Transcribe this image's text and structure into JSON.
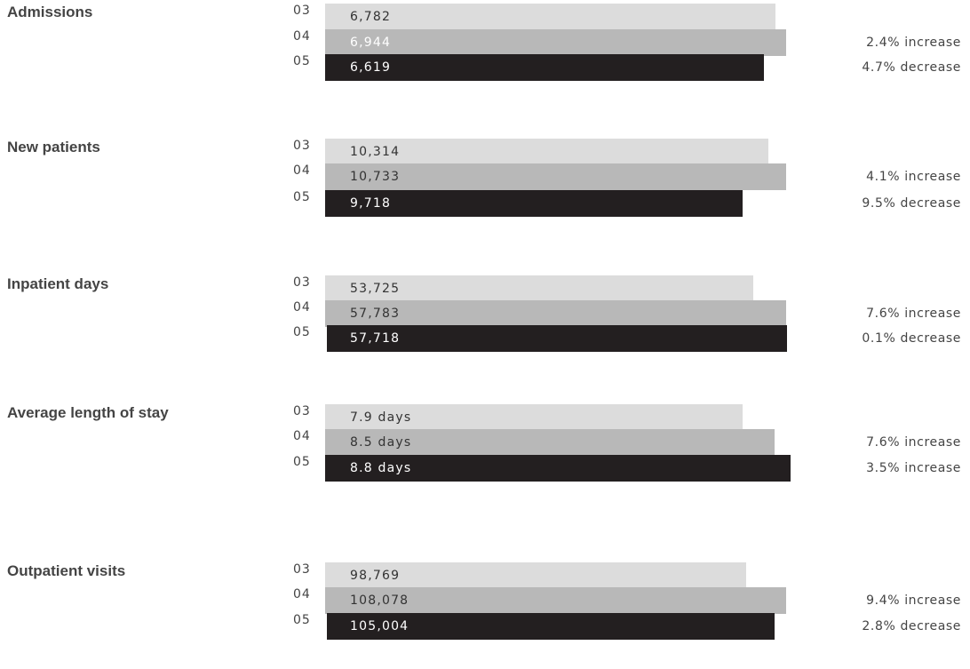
{
  "colors": {
    "year03": "#dcdcdc",
    "year04": "#b8b8b8",
    "year05": "#231f20",
    "text": "#444444"
  },
  "chart_data": [
    {
      "type": "bar",
      "orientation": "horizontal",
      "title": "Admissions",
      "categories": [
        "03",
        "04",
        "05"
      ],
      "values": [
        6782,
        6944,
        6619
      ],
      "labels": [
        "6,782",
        "6,944",
        "6,619"
      ],
      "changes": [
        "",
        "2.4% increase",
        "4.7% decrease"
      ]
    },
    {
      "type": "bar",
      "orientation": "horizontal",
      "title": "New patients",
      "categories": [
        "03",
        "04",
        "05"
      ],
      "values": [
        10314,
        10733,
        9718
      ],
      "labels": [
        "10,314",
        "10,733",
        "9,718"
      ],
      "changes": [
        "",
        "4.1% increase",
        "9.5% decrease"
      ]
    },
    {
      "type": "bar",
      "orientation": "horizontal",
      "title": "Inpatient days",
      "categories": [
        "03",
        "04",
        "05"
      ],
      "values": [
        53725,
        57783,
        57718
      ],
      "labels": [
        "53,725",
        "57,783",
        "57,718"
      ],
      "changes": [
        "",
        "7.6% increase",
        "0.1% decrease"
      ]
    },
    {
      "type": "bar",
      "orientation": "horizontal",
      "title": "Average length of stay",
      "categories": [
        "03",
        "04",
        "05"
      ],
      "values": [
        7.9,
        8.5,
        8.8
      ],
      "labels": [
        "7.9 days",
        "8.5 days",
        "8.8 days"
      ],
      "changes": [
        "",
        "7.6% increase",
        "3.5% increase"
      ]
    },
    {
      "type": "bar",
      "orientation": "horizontal",
      "title": "Outpatient visits",
      "categories": [
        "03",
        "04",
        "05"
      ],
      "values": [
        98769,
        108078,
        105004
      ],
      "labels": [
        "98,769",
        "108,078",
        "105,004"
      ],
      "changes": [
        "",
        "9.4% increase",
        "2.8% decrease"
      ]
    }
  ]
}
